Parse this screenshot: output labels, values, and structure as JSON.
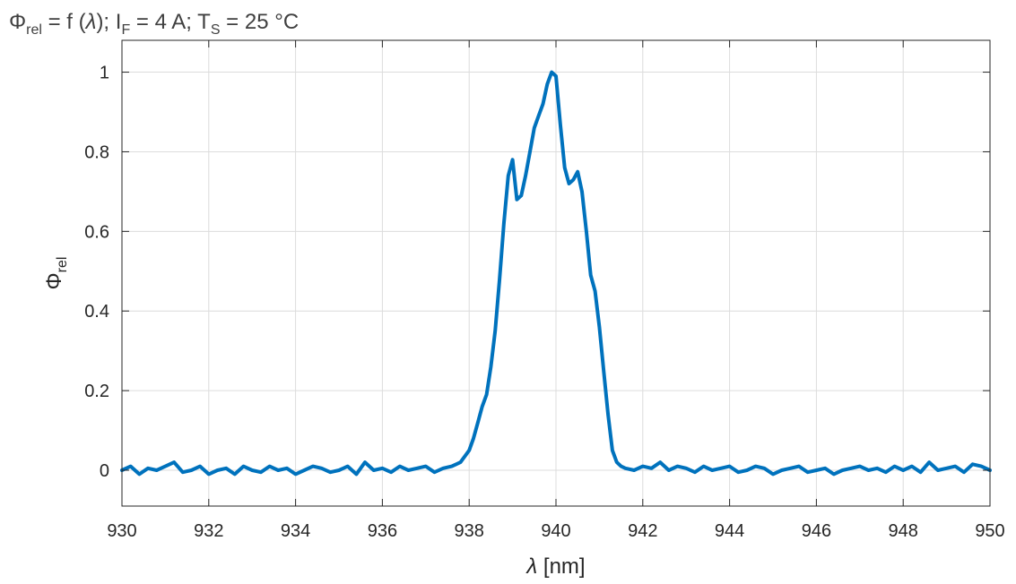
{
  "chart_data": {
    "type": "line",
    "title": {
      "sym": "Φ",
      "sym_sub": "rel",
      "eq": " = f (",
      "lambda": "λ",
      "after": "); I",
      "i_sub": "F",
      "mid": " = 4 A; T",
      "t_sub": "S",
      "end": " = 25 °C"
    },
    "xlabel": {
      "sym": "λ",
      "rest": " [nm]"
    },
    "ylabel": {
      "sym": "Φ",
      "sub": "rel"
    },
    "xlim": [
      930,
      950
    ],
    "ylim": [
      -0.09,
      1.08
    ],
    "xticks": [
      930,
      932,
      934,
      936,
      938,
      940,
      942,
      944,
      946,
      948,
      950
    ],
    "xtick_labels": [
      "930",
      "932",
      "934",
      "936",
      "938",
      "940",
      "942",
      "944",
      "946",
      "948",
      "950"
    ],
    "yticks": [
      0,
      0.2,
      0.4,
      0.6,
      0.8,
      1
    ],
    "ytick_labels": [
      "0",
      "0.2",
      "0.4",
      "0.6",
      "0.8",
      "1"
    ],
    "grid": true,
    "series": [
      {
        "color": "#0072BD",
        "x": [
          930.0,
          930.2,
          930.4,
          930.6,
          930.8,
          931.0,
          931.2,
          931.4,
          931.6,
          931.8,
          932.0,
          932.2,
          932.4,
          932.6,
          932.8,
          933.0,
          933.2,
          933.4,
          933.6,
          933.8,
          934.0,
          934.2,
          934.4,
          934.6,
          934.8,
          935.0,
          935.2,
          935.4,
          935.6,
          935.8,
          936.0,
          936.2,
          936.4,
          936.6,
          936.8,
          937.0,
          937.2,
          937.4,
          937.6,
          937.8,
          938.0,
          938.1,
          938.2,
          938.3,
          938.4,
          938.5,
          938.6,
          938.7,
          938.8,
          938.9,
          939.0,
          939.1,
          939.2,
          939.3,
          939.4,
          939.5,
          939.6,
          939.7,
          939.8,
          939.9,
          940.0,
          940.1,
          940.2,
          940.3,
          940.4,
          940.5,
          940.6,
          940.7,
          940.8,
          940.9,
          941.0,
          941.1,
          941.2,
          941.3,
          941.4,
          941.5,
          941.6,
          941.8,
          942.0,
          942.2,
          942.4,
          942.6,
          942.8,
          943.0,
          943.2,
          943.4,
          943.6,
          943.8,
          944.0,
          944.2,
          944.4,
          944.6,
          944.8,
          945.0,
          945.2,
          945.4,
          945.6,
          945.8,
          946.0,
          946.2,
          946.4,
          946.6,
          946.8,
          947.0,
          947.2,
          947.4,
          947.6,
          947.8,
          948.0,
          948.2,
          948.4,
          948.6,
          948.8,
          949.0,
          949.2,
          949.4,
          949.6,
          949.8,
          950.0
        ],
        "y": [
          0.0,
          0.01,
          -0.01,
          0.005,
          0.0,
          0.01,
          0.02,
          -0.005,
          0.0,
          0.01,
          -0.01,
          0.0,
          0.005,
          -0.01,
          0.01,
          0.0,
          -0.005,
          0.01,
          0.0,
          0.005,
          -0.01,
          0.0,
          0.01,
          0.005,
          -0.005,
          0.0,
          0.01,
          -0.01,
          0.02,
          0.0,
          0.005,
          -0.005,
          0.01,
          0.0,
          0.005,
          0.01,
          -0.005,
          0.005,
          0.01,
          0.02,
          0.05,
          0.08,
          0.12,
          0.16,
          0.19,
          0.26,
          0.35,
          0.48,
          0.62,
          0.74,
          0.78,
          0.68,
          0.69,
          0.74,
          0.8,
          0.86,
          0.89,
          0.92,
          0.97,
          1.0,
          0.99,
          0.87,
          0.76,
          0.72,
          0.73,
          0.75,
          0.7,
          0.6,
          0.49,
          0.45,
          0.36,
          0.25,
          0.14,
          0.05,
          0.02,
          0.01,
          0.005,
          0.0,
          0.01,
          0.005,
          0.02,
          0.0,
          0.01,
          0.005,
          -0.005,
          0.01,
          0.0,
          0.005,
          0.01,
          -0.005,
          0.0,
          0.01,
          0.005,
          -0.01,
          0.0,
          0.005,
          0.01,
          -0.005,
          0.0,
          0.005,
          -0.01,
          0.0,
          0.005,
          0.01,
          0.0,
          0.005,
          -0.005,
          0.01,
          0.0,
          0.01,
          -0.005,
          0.02,
          0.0,
          0.005,
          0.01,
          -0.005,
          0.015,
          0.01,
          0.0
        ]
      }
    ]
  }
}
